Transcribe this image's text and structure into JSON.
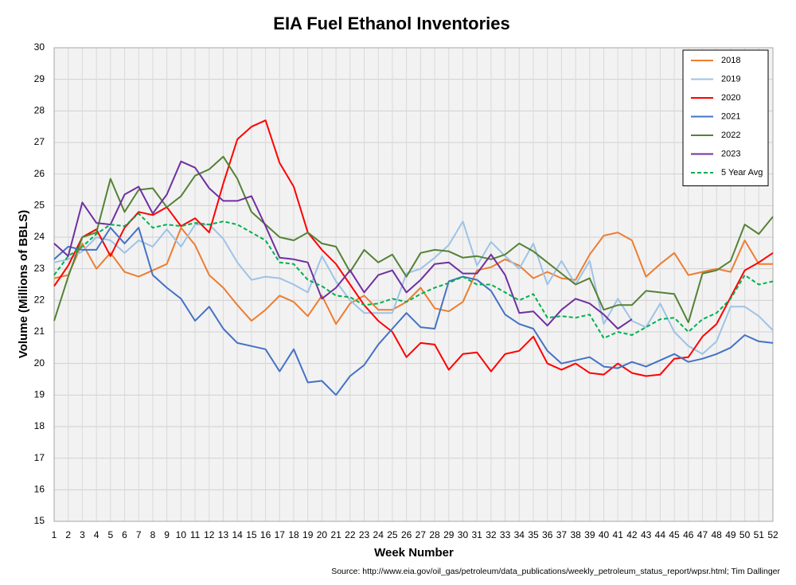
{
  "chart_data": {
    "type": "line",
    "title": "EIA Fuel Ethanol Inventories",
    "x_label": "Week Number",
    "y_label": "Volume (Millions of BBLS)",
    "source": "Source: http://www.eia.gov/oil_gas/petroleum/data_publications/weekly_petroleum_status_report/wpsr.html; Tim Dallinger",
    "x": [
      1,
      2,
      3,
      4,
      5,
      6,
      7,
      8,
      9,
      10,
      11,
      12,
      13,
      14,
      15,
      16,
      17,
      18,
      19,
      20,
      21,
      22,
      23,
      24,
      25,
      26,
      27,
      28,
      29,
      30,
      31,
      32,
      33,
      34,
      35,
      36,
      37,
      38,
      39,
      40,
      41,
      42,
      43,
      44,
      45,
      46,
      47,
      48,
      49,
      50,
      51,
      52
    ],
    "xlim": [
      1,
      52
    ],
    "xticks": [
      1,
      2,
      3,
      4,
      5,
      6,
      7,
      8,
      9,
      10,
      11,
      12,
      13,
      14,
      15,
      16,
      17,
      18,
      19,
      20,
      21,
      22,
      23,
      24,
      25,
      26,
      27,
      28,
      29,
      30,
      31,
      32,
      33,
      34,
      35,
      36,
      37,
      38,
      39,
      40,
      41,
      42,
      43,
      44,
      45,
      46,
      47,
      48,
      49,
      50,
      51,
      52
    ],
    "ylim": [
      15,
      30
    ],
    "yticks": [
      15,
      16,
      17,
      18,
      19,
      20,
      21,
      22,
      23,
      24,
      25,
      26,
      27,
      28,
      29,
      30
    ],
    "grid": true,
    "legend": "top-right",
    "series": [
      {
        "name": "2018",
        "color": "#ed7d31",
        "dash": false,
        "values": [
          22.7,
          22.8,
          23.8,
          23.0,
          23.5,
          22.9,
          22.75,
          22.95,
          23.15,
          24.3,
          23.75,
          22.8,
          22.4,
          21.85,
          21.35,
          21.7,
          22.15,
          21.95,
          21.5,
          22.15,
          21.25,
          21.9,
          22.15,
          21.7,
          21.7,
          21.95,
          22.4,
          21.75,
          21.65,
          21.95,
          22.95,
          23.05,
          23.3,
          23.1,
          22.7,
          22.9,
          22.7,
          22.65,
          23.45,
          24.05,
          24.15,
          23.9,
          22.75,
          23.15,
          23.5,
          22.8,
          22.9,
          23.0,
          22.9,
          23.9,
          23.15,
          23.15
        ]
      },
      {
        "name": "2019",
        "color": "#9dc3e6",
        "dash": false,
        "values": [
          23.2,
          23.3,
          23.55,
          24.0,
          23.9,
          23.5,
          23.9,
          23.7,
          24.25,
          23.7,
          24.4,
          24.4,
          23.95,
          23.2,
          22.65,
          22.75,
          22.7,
          22.5,
          22.25,
          23.4,
          22.6,
          22.0,
          21.6,
          21.6,
          21.6,
          22.85,
          23.0,
          23.35,
          23.75,
          24.5,
          23.1,
          23.85,
          23.4,
          23.0,
          23.8,
          22.5,
          23.25,
          22.5,
          23.25,
          21.25,
          22.05,
          21.35,
          21.15,
          21.9,
          21.0,
          20.55,
          20.3,
          20.7,
          21.8,
          21.8,
          21.5,
          21.05
        ]
      },
      {
        "name": "2020",
        "color": "#ff0000",
        "dash": false,
        "values": [
          22.45,
          23.1,
          24.0,
          24.25,
          23.4,
          24.3,
          24.8,
          24.7,
          24.95,
          24.35,
          24.6,
          24.15,
          25.7,
          27.1,
          27.5,
          27.7,
          26.35,
          25.6,
          24.15,
          23.6,
          23.15,
          22.5,
          21.85,
          21.35,
          21.0,
          20.2,
          20.65,
          20.6,
          19.8,
          20.3,
          20.35,
          19.75,
          20.3,
          20.4,
          20.85,
          20.0,
          19.8,
          20.0,
          19.7,
          19.65,
          20.0,
          19.7,
          19.6,
          19.65,
          20.15,
          20.2,
          20.85,
          21.25,
          22.1,
          22.95,
          23.2,
          23.5
        ]
      },
      {
        "name": "2021",
        "color": "#4472c4",
        "dash": false,
        "values": [
          23.3,
          23.7,
          23.6,
          23.6,
          24.3,
          23.8,
          24.3,
          22.8,
          22.4,
          22.05,
          21.35,
          21.8,
          21.1,
          20.65,
          20.55,
          20.45,
          19.75,
          20.45,
          19.4,
          19.45,
          19.0,
          19.6,
          19.95,
          20.6,
          21.1,
          21.6,
          21.15,
          21.1,
          22.6,
          22.75,
          22.65,
          22.3,
          21.55,
          21.25,
          21.1,
          20.4,
          20.0,
          20.1,
          20.2,
          19.9,
          19.85,
          20.05,
          19.9,
          20.1,
          20.3,
          20.05,
          20.15,
          20.3,
          20.5,
          20.9,
          20.7,
          20.65
        ]
      },
      {
        "name": "2022",
        "color": "#548235",
        "dash": false,
        "values": [
          21.35,
          22.75,
          24.0,
          24.15,
          25.85,
          24.8,
          25.5,
          25.55,
          24.95,
          25.3,
          25.95,
          26.15,
          26.55,
          25.85,
          24.8,
          24.4,
          24.0,
          23.9,
          24.15,
          23.8,
          23.7,
          22.9,
          23.6,
          23.2,
          23.45,
          22.75,
          23.5,
          23.6,
          23.55,
          23.35,
          23.4,
          23.3,
          23.45,
          23.8,
          23.55,
          23.2,
          22.85,
          22.5,
          22.7,
          21.7,
          21.85,
          21.85,
          22.3,
          22.25,
          22.2,
          21.3,
          22.85,
          22.95,
          23.25,
          24.4,
          24.1,
          24.65
        ]
      },
      {
        "name": "2023",
        "color": "#7030a0",
        "dash": false,
        "values": [
          23.8,
          23.4,
          25.1,
          24.45,
          24.4,
          25.35,
          25.6,
          24.75,
          25.35,
          26.4,
          26.2,
          25.55,
          25.15,
          25.15,
          25.3,
          24.35,
          23.35,
          23.3,
          23.2,
          22.05,
          22.4,
          22.95,
          22.25,
          22.8,
          22.95,
          22.25,
          22.65,
          23.15,
          23.2,
          22.85,
          22.85,
          23.45,
          22.8,
          21.6,
          21.65,
          21.2,
          21.7,
          22.05,
          21.9,
          21.55,
          21.1,
          21.4,
          null,
          null,
          null,
          null,
          null,
          null,
          null,
          null,
          null,
          null
        ]
      },
      {
        "name": "5 Year Avg",
        "color": "#00b050",
        "dash": true,
        "values": [
          22.8,
          23.4,
          23.7,
          24.1,
          24.4,
          24.35,
          24.75,
          24.3,
          24.4,
          24.35,
          24.45,
          24.4,
          24.5,
          24.4,
          24.15,
          23.9,
          23.2,
          23.15,
          22.65,
          22.45,
          22.15,
          22.1,
          21.85,
          21.9,
          22.05,
          21.95,
          22.2,
          22.4,
          22.55,
          22.75,
          22.5,
          22.5,
          22.25,
          22.0,
          22.2,
          21.45,
          21.5,
          21.45,
          21.55,
          20.8,
          21.0,
          20.9,
          21.15,
          21.4,
          21.45,
          21.0,
          21.4,
          21.6,
          22.05,
          22.8,
          22.5,
          22.6
        ]
      }
    ]
  }
}
